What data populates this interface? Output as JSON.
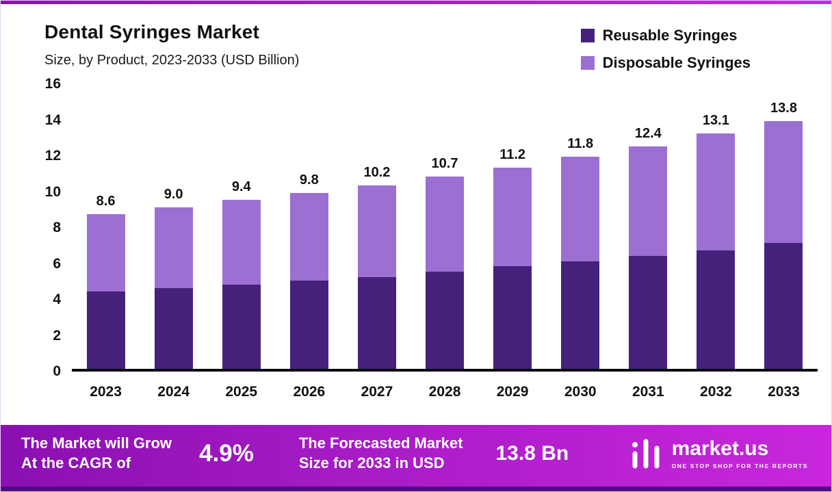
{
  "header": {
    "title": "Dental Syringes Market",
    "subtitle": "Size, by Product, 2023-2033 (USD Billion)"
  },
  "legend": [
    {
      "label": "Reusable Syringes",
      "color": "#45217c"
    },
    {
      "label": "Disposable Syringes",
      "color": "#9c6fd3"
    }
  ],
  "chart_data": {
    "type": "bar",
    "stacked": true,
    "title": "Dental Syringes Market Size, by Product, 2023-2033 (USD Billion)",
    "xlabel": "",
    "ylabel": "",
    "ylim": [
      0,
      16
    ],
    "yticks": [
      0,
      2,
      4,
      6,
      8,
      10,
      12,
      14,
      16
    ],
    "grid": false,
    "legend_position": "top-right",
    "categories": [
      "2023",
      "2024",
      "2025",
      "2026",
      "2027",
      "2028",
      "2029",
      "2030",
      "2031",
      "2032",
      "2033"
    ],
    "series": [
      {
        "name": "Reusable Syringes",
        "color": "#45217c",
        "values": [
          4.3,
          4.5,
          4.7,
          4.9,
          5.1,
          5.4,
          5.7,
          6.0,
          6.3,
          6.6,
          7.0
        ]
      },
      {
        "name": "Disposable Syringes",
        "color": "#9c6fd3",
        "values": [
          4.3,
          4.5,
          4.7,
          4.9,
          5.1,
          5.3,
          5.5,
          5.8,
          6.1,
          6.5,
          6.8
        ]
      }
    ],
    "totals": [
      8.6,
      9.0,
      9.4,
      9.8,
      10.2,
      10.7,
      11.2,
      11.8,
      12.4,
      13.1,
      13.8
    ]
  },
  "footer": {
    "left_line1": "The Market will Grow",
    "left_line2": "At the CAGR of",
    "cagr": "4.9%",
    "mid_line1": "The Forecasted Market",
    "mid_line2": "Size for 2033 in USD",
    "forecast": "13.8 Bn",
    "brand": "market.us",
    "tagline": "ONE STOP SHOP FOR THE REPORTS"
  }
}
